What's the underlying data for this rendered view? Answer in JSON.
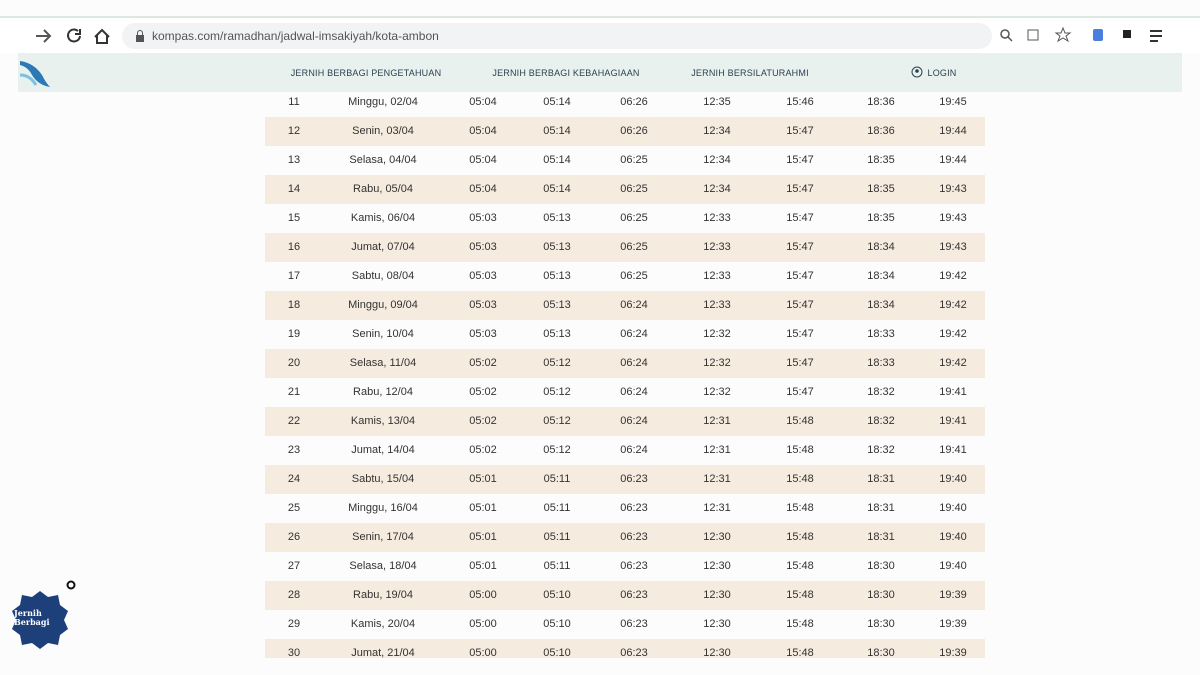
{
  "browser": {
    "url": "kompas.com/ramadhan/jadwal-imsakiyah/kota-ambon"
  },
  "nav": {
    "items": [
      "JERNIH BERBAGI PENGETAHUAN",
      "JERNIH BERBAGI KEBAHAGIAAN",
      "JERNIH BERSILATURAHMI"
    ],
    "login": "LOGIN"
  },
  "badge": "Jernih Berbagi",
  "table": {
    "rows": [
      [
        "11",
        "Minggu, 02/04",
        "05:04",
        "05:14",
        "06:26",
        "12:35",
        "15:46",
        "18:36",
        "19:45"
      ],
      [
        "12",
        "Senin, 03/04",
        "05:04",
        "05:14",
        "06:26",
        "12:34",
        "15:47",
        "18:36",
        "19:44"
      ],
      [
        "13",
        "Selasa, 04/04",
        "05:04",
        "05:14",
        "06:25",
        "12:34",
        "15:47",
        "18:35",
        "19:44"
      ],
      [
        "14",
        "Rabu, 05/04",
        "05:04",
        "05:14",
        "06:25",
        "12:34",
        "15:47",
        "18:35",
        "19:43"
      ],
      [
        "15",
        "Kamis, 06/04",
        "05:03",
        "05:13",
        "06:25",
        "12:33",
        "15:47",
        "18:35",
        "19:43"
      ],
      [
        "16",
        "Jumat, 07/04",
        "05:03",
        "05:13",
        "06:25",
        "12:33",
        "15:47",
        "18:34",
        "19:43"
      ],
      [
        "17",
        "Sabtu, 08/04",
        "05:03",
        "05:13",
        "06:25",
        "12:33",
        "15:47",
        "18:34",
        "19:42"
      ],
      [
        "18",
        "Minggu, 09/04",
        "05:03",
        "05:13",
        "06:24",
        "12:33",
        "15:47",
        "18:34",
        "19:42"
      ],
      [
        "19",
        "Senin, 10/04",
        "05:03",
        "05:13",
        "06:24",
        "12:32",
        "15:47",
        "18:33",
        "19:42"
      ],
      [
        "20",
        "Selasa, 11/04",
        "05:02",
        "05:12",
        "06:24",
        "12:32",
        "15:47",
        "18:33",
        "19:42"
      ],
      [
        "21",
        "Rabu, 12/04",
        "05:02",
        "05:12",
        "06:24",
        "12:32",
        "15:47",
        "18:32",
        "19:41"
      ],
      [
        "22",
        "Kamis, 13/04",
        "05:02",
        "05:12",
        "06:24",
        "12:31",
        "15:48",
        "18:32",
        "19:41"
      ],
      [
        "23",
        "Jumat, 14/04",
        "05:02",
        "05:12",
        "06:24",
        "12:31",
        "15:48",
        "18:32",
        "19:41"
      ],
      [
        "24",
        "Sabtu, 15/04",
        "05:01",
        "05:11",
        "06:23",
        "12:31",
        "15:48",
        "18:31",
        "19:40"
      ],
      [
        "25",
        "Minggu, 16/04",
        "05:01",
        "05:11",
        "06:23",
        "12:31",
        "15:48",
        "18:31",
        "19:40"
      ],
      [
        "26",
        "Senin, 17/04",
        "05:01",
        "05:11",
        "06:23",
        "12:30",
        "15:48",
        "18:31",
        "19:40"
      ],
      [
        "27",
        "Selasa, 18/04",
        "05:01",
        "05:11",
        "06:23",
        "12:30",
        "15:48",
        "18:30",
        "19:40"
      ],
      [
        "28",
        "Rabu, 19/04",
        "05:00",
        "05:10",
        "06:23",
        "12:30",
        "15:48",
        "18:30",
        "19:39"
      ],
      [
        "29",
        "Kamis, 20/04",
        "05:00",
        "05:10",
        "06:23",
        "12:30",
        "15:48",
        "18:30",
        "19:39"
      ],
      [
        "30",
        "Jumat, 21/04",
        "05:00",
        "05:10",
        "06:23",
        "12:30",
        "15:48",
        "18:30",
        "19:39"
      ]
    ]
  }
}
